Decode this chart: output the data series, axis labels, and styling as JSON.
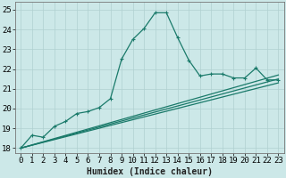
{
  "xlabel": "Humidex (Indice chaleur)",
  "background_color": "#cce8e8",
  "grid_color": "#b0d0d0",
  "line_color": "#1a7a6a",
  "xlim": [
    -0.5,
    23.5
  ],
  "ylim": [
    17.75,
    25.4
  ],
  "yticks": [
    18,
    19,
    20,
    21,
    22,
    23,
    24,
    25
  ],
  "xticks": [
    0,
    1,
    2,
    3,
    4,
    5,
    6,
    7,
    8,
    9,
    10,
    11,
    12,
    13,
    14,
    15,
    16,
    17,
    18,
    19,
    20,
    21,
    22,
    23
  ],
  "series1_x": [
    0,
    1,
    2,
    3,
    4,
    5,
    6,
    7,
    8,
    9,
    10,
    11,
    12,
    13,
    14,
    15,
    16,
    17,
    18,
    19,
    20,
    21,
    22,
    23
  ],
  "series1_y": [
    18.0,
    18.65,
    18.55,
    19.1,
    19.35,
    19.75,
    19.85,
    20.05,
    20.5,
    22.5,
    23.5,
    24.05,
    24.85,
    24.85,
    23.6,
    22.45,
    21.65,
    21.75,
    21.75,
    21.55,
    21.55,
    22.05,
    21.45,
    21.45
  ],
  "series2_x": [
    0,
    23
  ],
  "series2_y": [
    18.0,
    21.7
  ],
  "series3_x": [
    0,
    23
  ],
  "series3_y": [
    18.0,
    21.5
  ],
  "series4_x": [
    0,
    23
  ],
  "series4_y": [
    18.0,
    21.3
  ],
  "xlabel_fontsize": 7,
  "tick_fontsize": 6.5,
  "marker": "+"
}
